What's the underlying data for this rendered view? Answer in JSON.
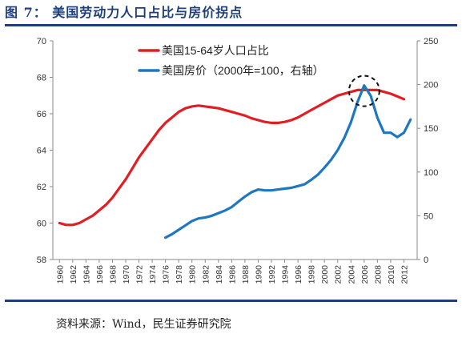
{
  "figure": {
    "title": "图 7：  美国劳动力人口占比与房价拐点",
    "source": "资料来源：Wind，民生证券研究院"
  },
  "colors": {
    "series1": "#e01e24",
    "series2": "#1f77c0",
    "rule": "#1f3f7a"
  },
  "chart_data": {
    "type": "line",
    "x_ticks": [
      "1960",
      "1962",
      "1964",
      "1966",
      "1968",
      "1970",
      "1972",
      "1974",
      "1976",
      "1978",
      "1980",
      "1982",
      "1984",
      "1986",
      "1988",
      "1990",
      "1992",
      "1994",
      "1996",
      "1998",
      "2000",
      "2002",
      "2004",
      "2006",
      "2008",
      "2010",
      "2012"
    ],
    "x_range": [
      1959,
      2014
    ],
    "y_left": {
      "range": [
        58,
        70
      ],
      "ticks": [
        "58",
        "60",
        "62",
        "64",
        "66",
        "68",
        "70"
      ]
    },
    "y_right": {
      "range": [
        0,
        250
      ],
      "ticks": [
        "0",
        "50",
        "100",
        "150",
        "200",
        "250"
      ]
    },
    "series": [
      {
        "name": "美国15-64岁人口占比",
        "axis": "left",
        "color": "#e01e24",
        "x": [
          1960,
          1961,
          1962,
          1963,
          1964,
          1965,
          1966,
          1967,
          1968,
          1969,
          1970,
          1971,
          1972,
          1973,
          1974,
          1975,
          1976,
          1977,
          1978,
          1979,
          1980,
          1981,
          1982,
          1983,
          1984,
          1985,
          1986,
          1987,
          1988,
          1989,
          1990,
          1991,
          1992,
          1993,
          1994,
          1995,
          1996,
          1997,
          1998,
          1999,
          2000,
          2001,
          2002,
          2003,
          2004,
          2005,
          2006,
          2007,
          2008,
          2009,
          2010,
          2011,
          2012
        ],
        "y": [
          60.0,
          59.9,
          59.9,
          60.0,
          60.2,
          60.4,
          60.7,
          61.0,
          61.4,
          61.9,
          62.4,
          63.0,
          63.6,
          64.1,
          64.6,
          65.1,
          65.5,
          65.8,
          66.1,
          66.3,
          66.4,
          66.45,
          66.4,
          66.35,
          66.3,
          66.2,
          66.1,
          66.0,
          65.9,
          65.75,
          65.65,
          65.55,
          65.5,
          65.5,
          65.55,
          65.65,
          65.8,
          66.0,
          66.2,
          66.4,
          66.6,
          66.8,
          67.0,
          67.1,
          67.2,
          67.3,
          67.3,
          67.3,
          67.3,
          67.2,
          67.1,
          66.95,
          66.8
        ]
      },
      {
        "name": "美国房价（2000年=100，右轴）",
        "axis": "right",
        "color": "#1f77c0",
        "x": [
          1976,
          1977,
          1978,
          1979,
          1980,
          1981,
          1982,
          1983,
          1984,
          1985,
          1986,
          1987,
          1988,
          1989,
          1990,
          1991,
          1992,
          1993,
          1994,
          1995,
          1996,
          1997,
          1998,
          1999,
          2000,
          2001,
          2002,
          2003,
          2004,
          2005,
          2006,
          2007,
          2008,
          2009,
          2010,
          2011,
          2012,
          2013
        ],
        "y": [
          25,
          29,
          34,
          39,
          44,
          47,
          48,
          50,
          53,
          56,
          60,
          66,
          72,
          77,
          80,
          79,
          79,
          80,
          81,
          82,
          84,
          86,
          91,
          97,
          105,
          114,
          125,
          139,
          157,
          180,
          199,
          187,
          162,
          145,
          145,
          140,
          145,
          160
        ]
      }
    ],
    "annotation": "dashed-ellipse at 2006 peak",
    "grid": false,
    "legend": "top-center"
  }
}
